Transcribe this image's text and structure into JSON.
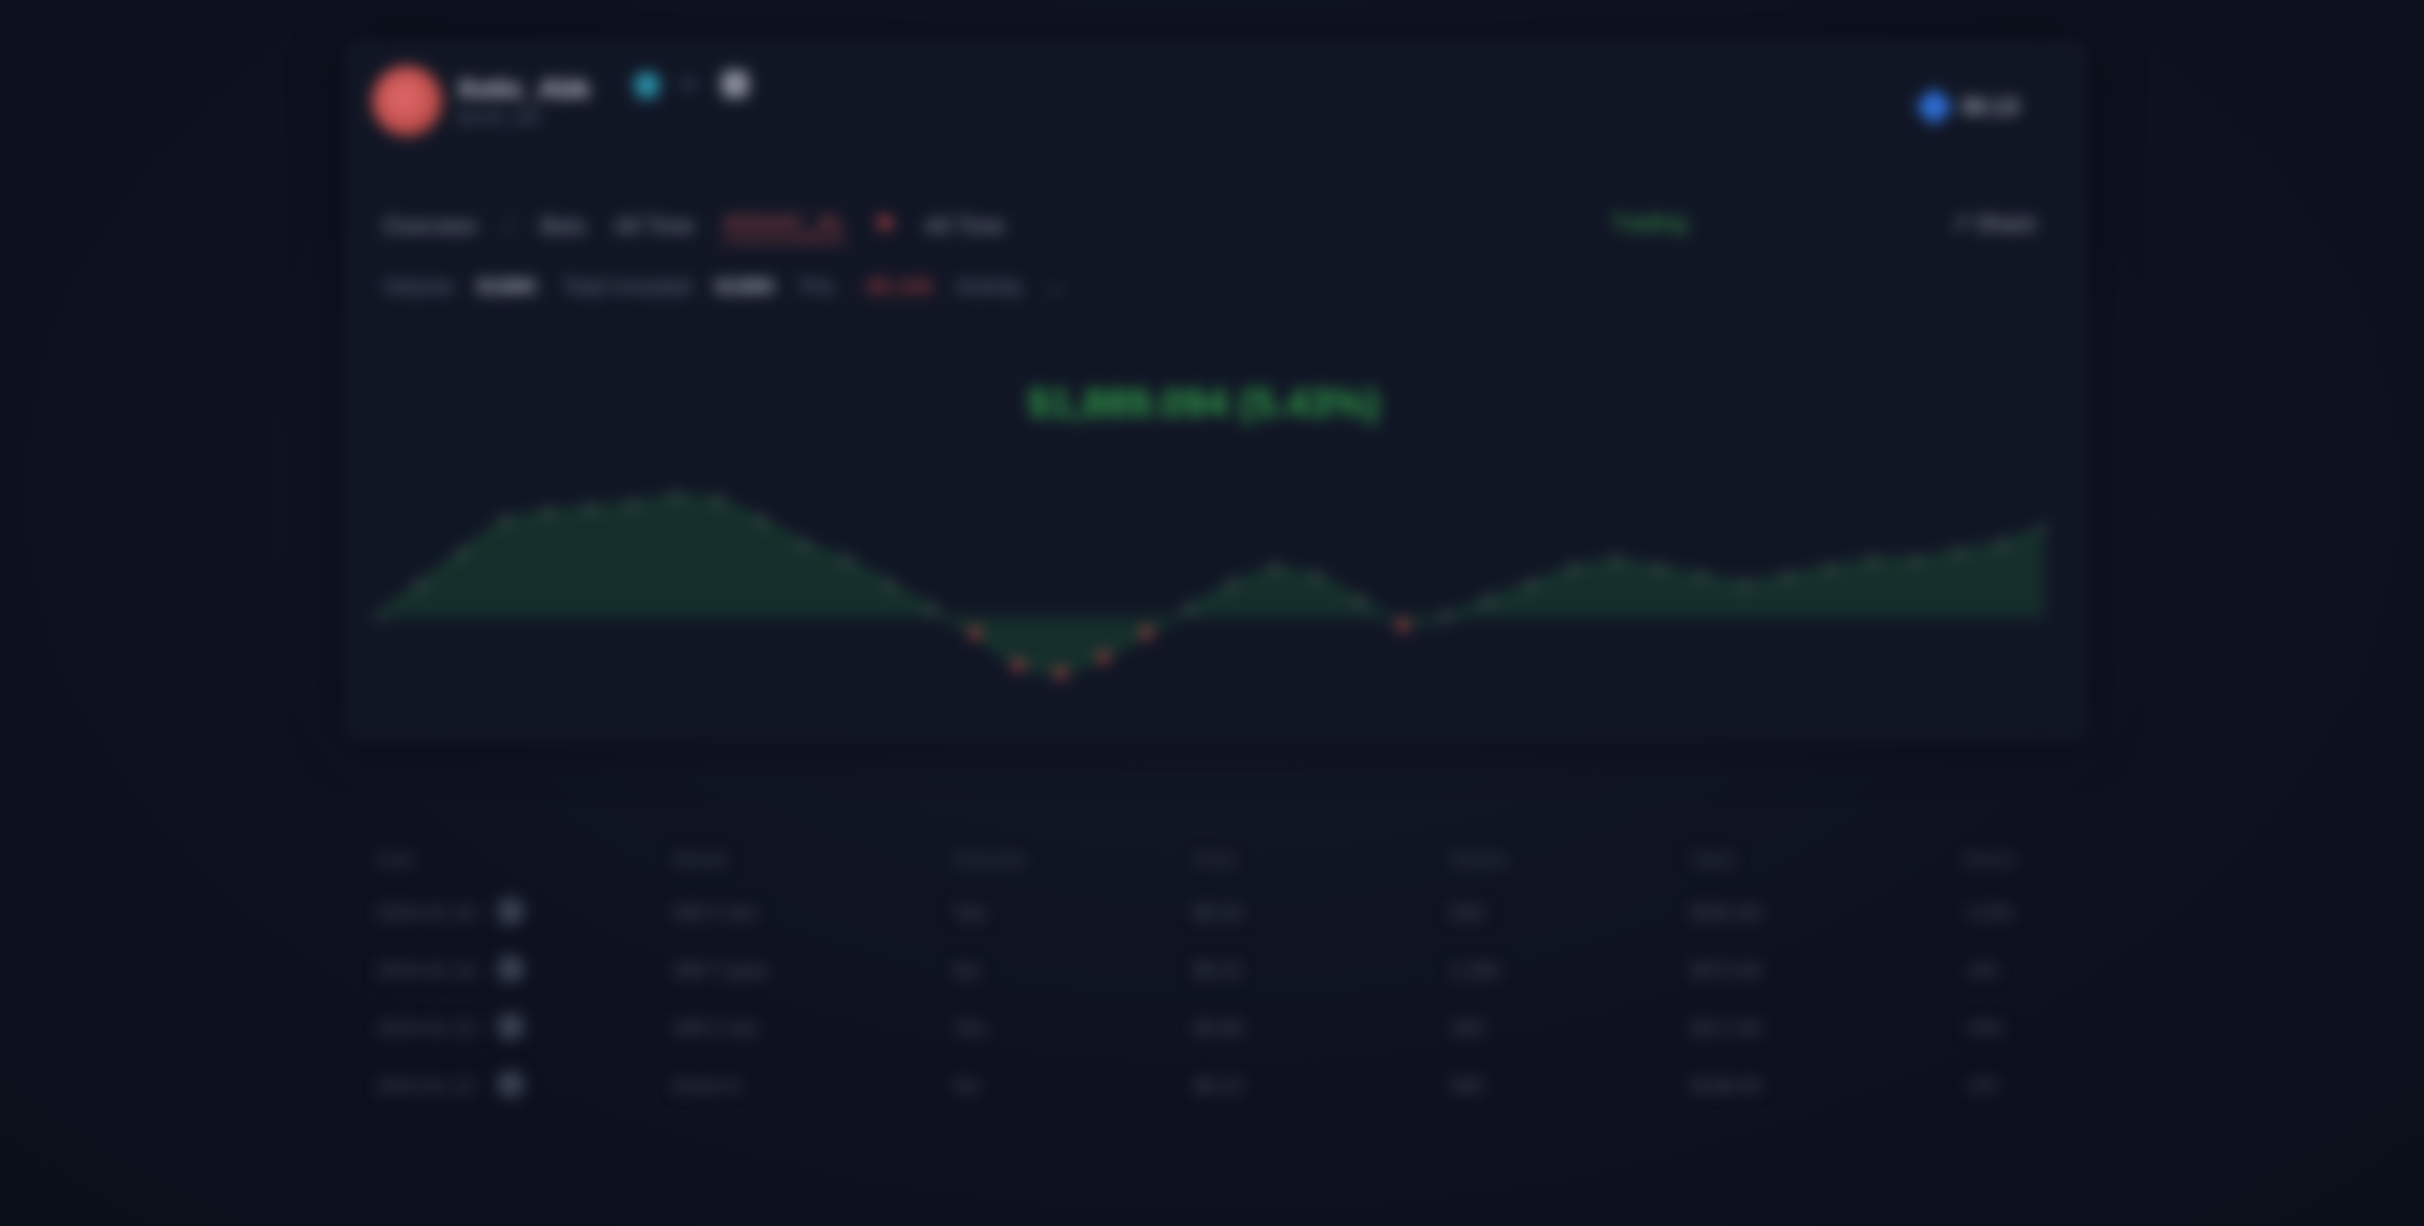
{
  "header": {
    "username": "Xotic_Abk",
    "subtitle": "@xotic_abk",
    "top_right": "$0.13"
  },
  "nav": {
    "items": [
      "Overview",
      "/",
      "Bets",
      "All Time",
      "AISAAC_AL",
      "All Time"
    ],
    "status": "Trading",
    "share": "Share"
  },
  "filters": [
    {
      "label": "Volume",
      "value": "$188K"
    },
    {
      "label": "Total Invested",
      "value": "$188K"
    },
    {
      "label": "PnL",
      "value": "-$5,348"
    },
    {
      "label": "Activity",
      "value": ""
    }
  ],
  "summary": {
    "value": "$1,889.094 (5.43%)"
  },
  "chart_data": {
    "type": "area",
    "x": [
      0,
      1,
      2,
      3,
      4,
      5,
      6,
      7,
      8,
      9,
      10,
      11,
      12,
      13,
      14,
      15,
      16,
      17,
      18,
      19,
      20,
      21,
      22,
      23,
      24,
      25,
      26,
      27,
      28,
      29,
      30,
      31,
      32,
      33,
      34,
      35,
      36,
      37,
      38,
      39
    ],
    "values": [
      0,
      40,
      80,
      120,
      130,
      135,
      140,
      150,
      145,
      120,
      90,
      70,
      40,
      10,
      -20,
      -60,
      -70,
      -50,
      -20,
      10,
      40,
      60,
      50,
      20,
      -10,
      0,
      20,
      40,
      60,
      70,
      60,
      50,
      40,
      50,
      60,
      70,
      70,
      80,
      90,
      110
    ],
    "colors": {
      "positive": "#2f9a48",
      "negative": "#c24545"
    }
  },
  "table": {
    "columns": [
      "Date",
      "Market",
      "Outcome",
      "Price",
      "Shares",
      "Value",
      "Return"
    ],
    "rows": [
      [
        "2024-01-15",
        "Will X win",
        "Yes",
        "$0.54",
        "540",
        "$291.60",
        "+12%"
      ],
      [
        "2024-01-14",
        "Will Y pass",
        "No",
        "$0.31",
        "1,200",
        "$372.00",
        "-4%"
      ],
      [
        "2024-01-13",
        "Will Z rise",
        "Yes",
        "$0.68",
        "320",
        "$217.60",
        "+8%"
      ],
      [
        "2024-01-12",
        "Event A",
        "No",
        "$0.22",
        "900",
        "$198.00",
        "-2%"
      ]
    ]
  }
}
